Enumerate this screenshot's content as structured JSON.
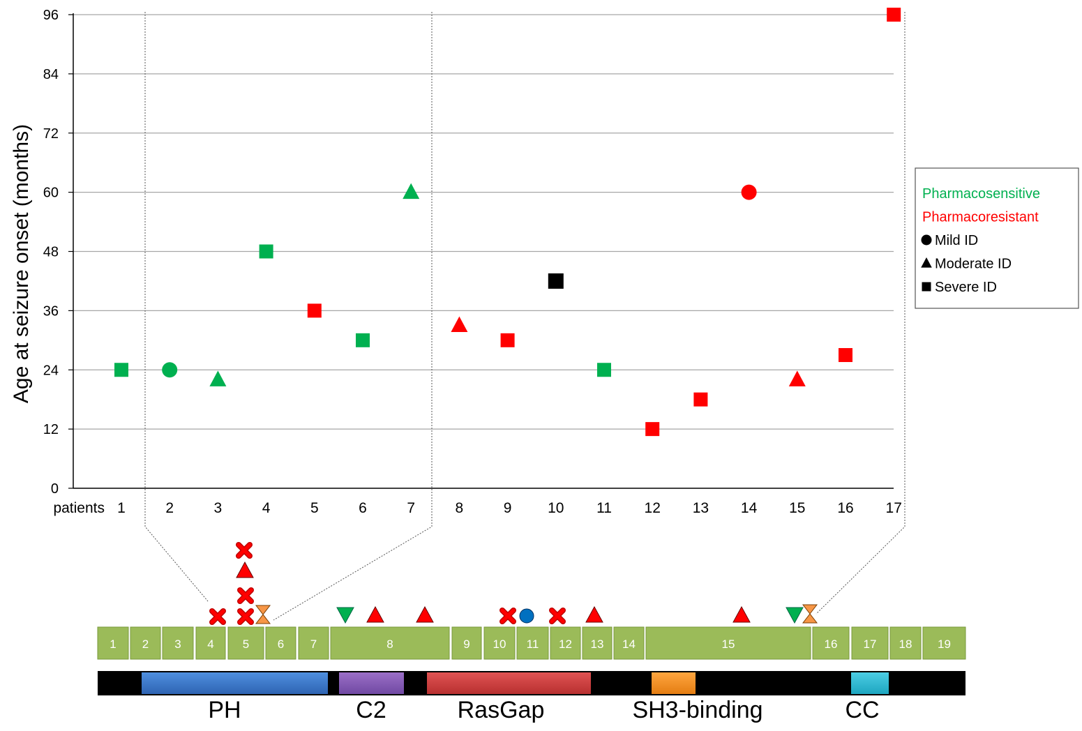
{
  "chart_data": {
    "type": "scatter",
    "ylabel": "Age at seizure onset (months)",
    "x_axis_label": "patients",
    "yticks": [
      0,
      12,
      24,
      36,
      48,
      60,
      72,
      84,
      96
    ],
    "ylim": [
      0,
      96
    ],
    "x": [
      1,
      2,
      3,
      4,
      5,
      6,
      7,
      8,
      9,
      10,
      11,
      12,
      13,
      14,
      15,
      16,
      17
    ],
    "grid": true,
    "colors": {
      "pharmacosensitive": "#00b050",
      "pharmacoresistant": "#ff0000",
      "unknown": "#000000"
    },
    "points": [
      {
        "patient": 1,
        "age": 24,
        "id": "severe",
        "response": "pharmacosensitive"
      },
      {
        "patient": 2,
        "age": 24,
        "id": "mild",
        "response": "pharmacosensitive"
      },
      {
        "patient": 3,
        "age": 22,
        "id": "moderate",
        "response": "pharmacosensitive"
      },
      {
        "patient": 4,
        "age": 48,
        "id": "severe",
        "response": "pharmacosensitive"
      },
      {
        "patient": 5,
        "age": 36,
        "id": "severe",
        "response": "pharmacoresistant"
      },
      {
        "patient": 6,
        "age": 30,
        "id": "severe",
        "response": "pharmacosensitive"
      },
      {
        "patient": 7,
        "age": 60,
        "id": "moderate",
        "response": "pharmacosensitive"
      },
      {
        "patient": 8,
        "age": 33,
        "id": "moderate",
        "response": "pharmacoresistant"
      },
      {
        "patient": 9,
        "age": 30,
        "id": "severe",
        "response": "pharmacoresistant"
      },
      {
        "patient": 10,
        "age": 42,
        "id": "severe",
        "response": "unknown"
      },
      {
        "patient": 11,
        "age": 24,
        "id": "severe",
        "response": "pharmacosensitive"
      },
      {
        "patient": 12,
        "age": 12,
        "id": "severe",
        "response": "pharmacoresistant"
      },
      {
        "patient": 13,
        "age": 18,
        "id": "severe",
        "response": "pharmacoresistant"
      },
      {
        "patient": 14,
        "age": 60,
        "id": "mild",
        "response": "pharmacoresistant"
      },
      {
        "patient": 15,
        "age": 22,
        "id": "moderate",
        "response": "pharmacoresistant"
      },
      {
        "patient": 16,
        "age": 27,
        "id": "severe",
        "response": "pharmacoresistant"
      },
      {
        "patient": 17,
        "age": 96,
        "id": "severe",
        "response": "pharmacoresistant"
      }
    ],
    "legend": {
      "placement": "right",
      "entries": [
        {
          "label": "Pharmacosensitive",
          "kind": "text",
          "color": "#00b050"
        },
        {
          "label": "Pharmacoresistant",
          "kind": "text",
          "color": "#ff0000"
        },
        {
          "label": "Mild ID",
          "kind": "circle"
        },
        {
          "label": "Moderate ID",
          "kind": "triangle"
        },
        {
          "label": "Severe ID",
          "kind": "square"
        }
      ]
    },
    "exons": [
      "1",
      "2",
      "3",
      "4",
      "5",
      "6",
      "7",
      "8",
      "9",
      "10",
      "11",
      "12",
      "13",
      "14",
      "15",
      "16",
      "17",
      "18",
      "19"
    ],
    "domains": [
      "PH",
      "C2",
      "RasGap",
      "SH3-binding",
      "CC"
    ],
    "variants": [
      {
        "exon": "4",
        "type": "x"
      },
      {
        "exon": "5",
        "type": "x"
      },
      {
        "exon": "5",
        "type": "x"
      },
      {
        "exon": "5",
        "type": "triangle"
      },
      {
        "exon": "5",
        "type": "x"
      },
      {
        "exon": "5",
        "type": "hourglass"
      },
      {
        "exon": "8",
        "type": "down-triangle"
      },
      {
        "exon": "8",
        "type": "triangle"
      },
      {
        "exon": "8",
        "type": "triangle"
      },
      {
        "exon": "10",
        "type": "x"
      },
      {
        "exon": "11",
        "type": "circle"
      },
      {
        "exon": "12",
        "type": "x"
      },
      {
        "exon": "13",
        "type": "triangle"
      },
      {
        "exon": "15",
        "type": "triangle"
      },
      {
        "exon": "15",
        "type": "down-triangle"
      },
      {
        "exon": "16",
        "type": "hourglass"
      }
    ]
  }
}
